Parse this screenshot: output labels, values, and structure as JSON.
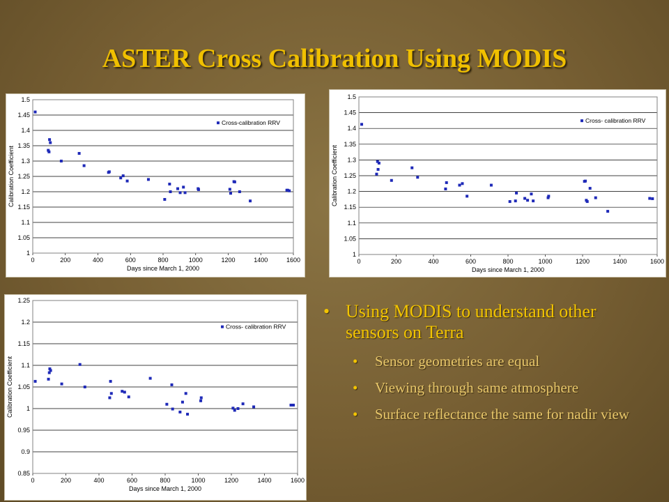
{
  "slide": {
    "title": "ASTER Cross Calibration Using MODIS",
    "bullets": [
      {
        "text": "Using MODIS to understand other sensors on Terra",
        "level": 1
      },
      {
        "text": "Sensor geometries are equal",
        "level": 2
      },
      {
        "text": "Viewing through same atmosphere",
        "level": 2
      },
      {
        "text": "Surface reflectance the same for nadir view",
        "level": 2
      }
    ],
    "bullet_glyph": "•"
  },
  "colors": {
    "title": "#f0c000",
    "background": "#7b6536",
    "marker": "#1f2ab8"
  },
  "chart_data": [
    {
      "type": "scatter",
      "xlabel": "Days since March 1, 2000",
      "ylabel": "Calibration Coefficient",
      "xlim": [
        0,
        1600
      ],
      "ylim": [
        1,
        1.5
      ],
      "xticks": [
        0,
        200,
        400,
        600,
        800,
        1000,
        1200,
        1400,
        1600
      ],
      "yticks": [
        1,
        1.05,
        1.1,
        1.15,
        1.2,
        1.25,
        1.3,
        1.35,
        1.4,
        1.45,
        1.5
      ],
      "grid": true,
      "legend": "top-right",
      "series": [
        {
          "name": "Cross-calibration RRV",
          "x": [
            15,
            95,
            100,
            103,
            108,
            175,
            285,
            315,
            465,
            470,
            540,
            555,
            580,
            710,
            810,
            840,
            845,
            890,
            905,
            925,
            935,
            1015,
            1018,
            1210,
            1215,
            1235,
            1240,
            1270,
            1335,
            1560,
            1565,
            1575
          ],
          "y": [
            1.46,
            1.335,
            1.33,
            1.37,
            1.36,
            1.3,
            1.325,
            1.285,
            1.263,
            1.265,
            1.245,
            1.252,
            1.235,
            1.24,
            1.175,
            1.225,
            1.2,
            1.21,
            1.197,
            1.215,
            1.197,
            1.21,
            1.207,
            1.208,
            1.195,
            1.233,
            1.232,
            1.2,
            1.17,
            1.205,
            1.205,
            1.203
          ]
        }
      ]
    },
    {
      "type": "scatter",
      "xlabel": "Days since March 1, 2000",
      "ylabel": "Calibration Coefficient",
      "xlim": [
        0,
        1600
      ],
      "ylim": [
        1,
        1.5
      ],
      "xticks": [
        0,
        200,
        400,
        600,
        800,
        1000,
        1200,
        1400,
        1600
      ],
      "yticks": [
        1,
        1.05,
        1.1,
        1.15,
        1.2,
        1.25,
        1.3,
        1.35,
        1.4,
        1.45,
        1.5
      ],
      "grid": true,
      "legend": "top-right",
      "series": [
        {
          "name": "Cross- calibration RRV",
          "x": [
            15,
            95,
            100,
            103,
            108,
            175,
            285,
            315,
            465,
            470,
            540,
            555,
            580,
            710,
            810,
            840,
            845,
            890,
            905,
            925,
            935,
            1015,
            1018,
            1210,
            1215,
            1220,
            1225,
            1240,
            1270,
            1335,
            1560,
            1575
          ],
          "y": [
            1.413,
            1.255,
            1.295,
            1.27,
            1.29,
            1.235,
            1.275,
            1.245,
            1.208,
            1.228,
            1.22,
            1.225,
            1.185,
            1.22,
            1.168,
            1.17,
            1.195,
            1.178,
            1.172,
            1.192,
            1.17,
            1.18,
            1.185,
            1.232,
            1.233,
            1.172,
            1.168,
            1.21,
            1.18,
            1.137,
            1.178,
            1.177
          ]
        }
      ]
    },
    {
      "type": "scatter",
      "xlabel": "Days since March 1, 2000",
      "ylabel": "Calibration Coefficient",
      "xlim": [
        0,
        1600
      ],
      "ylim": [
        0.85,
        1.25
      ],
      "xticks": [
        0,
        200,
        400,
        600,
        800,
        1000,
        1200,
        1400,
        1600
      ],
      "yticks": [
        0.85,
        0.9,
        0.95,
        1,
        1.05,
        1.1,
        1.15,
        1.2,
        1.25
      ],
      "grid": true,
      "legend": "top-right",
      "series": [
        {
          "name": "Cross- calibration RRV",
          "x": [
            15,
            95,
            100,
            103,
            108,
            175,
            285,
            315,
            465,
            470,
            475,
            540,
            555,
            580,
            710,
            810,
            840,
            845,
            890,
            905,
            925,
            935,
            1015,
            1018,
            1210,
            1220,
            1240,
            1270,
            1335,
            1560,
            1575
          ],
          "y": [
            1.063,
            1.068,
            1.083,
            1.092,
            1.088,
            1.057,
            1.102,
            1.05,
            1.025,
            1.063,
            1.035,
            1.04,
            1.038,
            1.027,
            1.07,
            1.01,
            1.055,
            0.999,
            0.992,
            1.015,
            1.035,
            0.987,
            1.018,
            1.025,
            1.001,
            0.996,
            1.0,
            1.011,
            1.004,
            1.008,
            1.008
          ]
        }
      ]
    }
  ]
}
